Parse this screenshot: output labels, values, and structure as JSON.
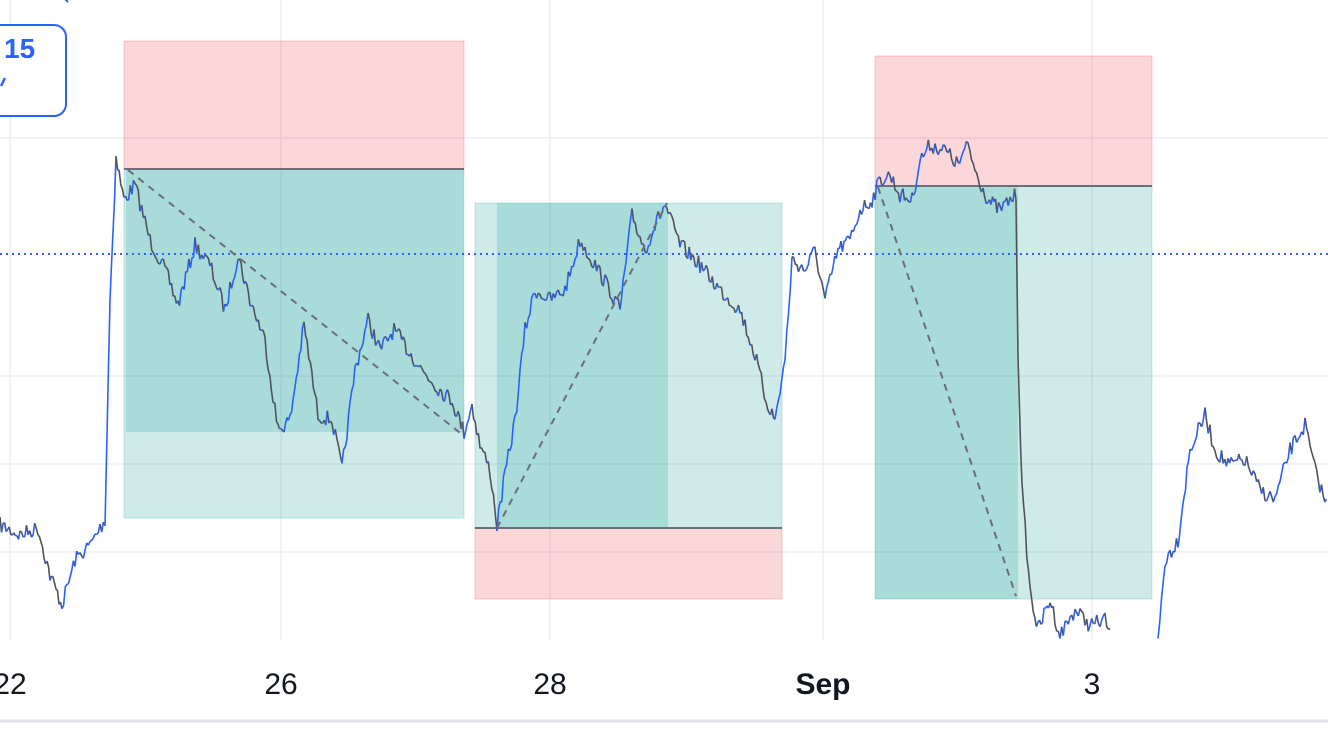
{
  "chart_data": {
    "type": "line",
    "title": "",
    "xlabel": "",
    "ylabel": "",
    "grid": true,
    "x_ticks": [
      {
        "label": "22",
        "bold": false
      },
      {
        "label": "26",
        "bold": false
      },
      {
        "label": "28",
        "bold": false
      },
      {
        "label": "Sep",
        "bold": true
      },
      {
        "label": "3",
        "bold": false
      }
    ],
    "corner_badge": {
      "text": "15"
    },
    "colors": {
      "price_up": "#2962ff",
      "price_down": "#50535e",
      "profit_zone": "#26a69a",
      "loss_zone": "#f23645",
      "current_price_line": "#2962ff"
    },
    "positions": [
      {
        "name": "position-1",
        "direction": "short"
      },
      {
        "name": "position-2",
        "direction": "long"
      },
      {
        "name": "position-3",
        "direction": "short"
      }
    ]
  }
}
